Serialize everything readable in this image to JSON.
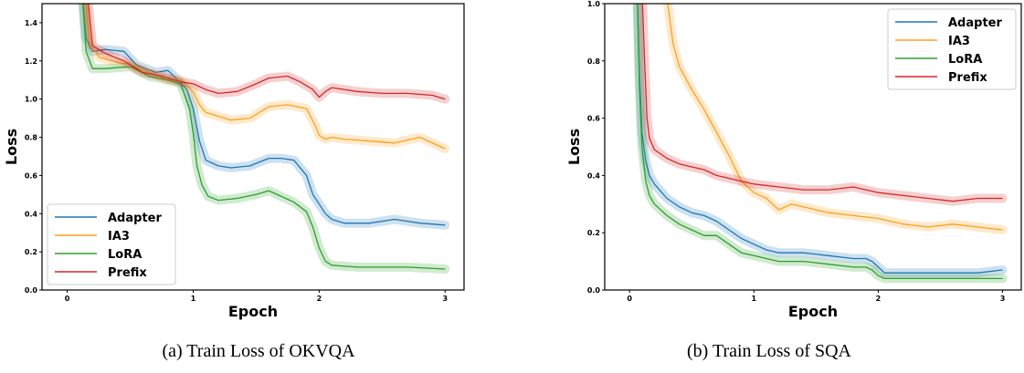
{
  "chart_data": [
    {
      "type": "line",
      "caption": "(a) Train Loss of OKVQA",
      "xlabel": "Epoch",
      "ylabel": "Loss",
      "xlim": [
        -0.2,
        3.15
      ],
      "ylim": [
        0.0,
        1.5
      ],
      "xticks": [
        0,
        1,
        2,
        3
      ],
      "yticks": [
        0.0,
        0.2,
        0.4,
        0.6,
        0.8,
        1.0,
        1.2,
        1.4
      ],
      "ytick_labels": [
        "0.0",
        "0.2",
        "0.4",
        "0.6",
        "0.8",
        "1.0",
        "1.2",
        "1.4"
      ],
      "legend_position": "lower-left",
      "series": [
        {
          "name": "Adapter",
          "color": "#1f77b4",
          "x": [
            0.12,
            0.15,
            0.2,
            0.3,
            0.45,
            0.55,
            0.7,
            0.8,
            0.88,
            0.95,
            1.0,
            1.05,
            1.1,
            1.2,
            1.3,
            1.45,
            1.6,
            1.7,
            1.8,
            1.9,
            1.95,
            2.0,
            2.05,
            2.1,
            2.2,
            2.4,
            2.6,
            2.8,
            3.0
          ],
          "y": [
            1.55,
            1.32,
            1.25,
            1.26,
            1.25,
            1.18,
            1.14,
            1.15,
            1.1,
            1.05,
            0.95,
            0.78,
            0.68,
            0.65,
            0.64,
            0.65,
            0.69,
            0.69,
            0.68,
            0.6,
            0.5,
            0.45,
            0.4,
            0.37,
            0.35,
            0.35,
            0.37,
            0.35,
            0.34
          ]
        },
        {
          "name": "IA3",
          "color": "#ff9f1c",
          "x": [
            0.14,
            0.18,
            0.25,
            0.35,
            0.5,
            0.65,
            0.8,
            0.9,
            1.0,
            1.05,
            1.1,
            1.2,
            1.3,
            1.45,
            1.6,
            1.75,
            1.9,
            1.97,
            2.0,
            2.05,
            2.1,
            2.2,
            2.4,
            2.6,
            2.8,
            3.0
          ],
          "y": [
            1.55,
            1.3,
            1.22,
            1.2,
            1.18,
            1.14,
            1.1,
            1.1,
            1.04,
            0.97,
            0.93,
            0.91,
            0.89,
            0.9,
            0.96,
            0.97,
            0.95,
            0.86,
            0.81,
            0.79,
            0.8,
            0.79,
            0.78,
            0.77,
            0.8,
            0.74
          ]
        },
        {
          "name": "LoRA",
          "color": "#2ca02c",
          "x": [
            0.12,
            0.15,
            0.2,
            0.3,
            0.5,
            0.65,
            0.8,
            0.9,
            0.97,
            1.0,
            1.03,
            1.07,
            1.12,
            1.2,
            1.35,
            1.5,
            1.6,
            1.7,
            1.8,
            1.9,
            1.95,
            2.0,
            2.05,
            2.1,
            2.3,
            2.5,
            2.7,
            3.0
          ],
          "y": [
            1.55,
            1.25,
            1.16,
            1.16,
            1.17,
            1.12,
            1.1,
            1.08,
            0.95,
            0.82,
            0.65,
            0.55,
            0.49,
            0.47,
            0.48,
            0.5,
            0.52,
            0.49,
            0.46,
            0.41,
            0.33,
            0.22,
            0.15,
            0.13,
            0.12,
            0.12,
            0.12,
            0.11
          ]
        },
        {
          "name": "Prefix",
          "color": "#d62728",
          "x": [
            0.16,
            0.2,
            0.3,
            0.45,
            0.6,
            0.75,
            0.9,
            1.0,
            1.1,
            1.2,
            1.35,
            1.5,
            1.6,
            1.75,
            1.85,
            1.95,
            2.0,
            2.05,
            2.1,
            2.3,
            2.5,
            2.7,
            2.9,
            3.0
          ],
          "y": [
            1.55,
            1.28,
            1.24,
            1.2,
            1.14,
            1.12,
            1.09,
            1.08,
            1.05,
            1.03,
            1.04,
            1.08,
            1.11,
            1.12,
            1.09,
            1.05,
            1.01,
            1.04,
            1.06,
            1.04,
            1.03,
            1.03,
            1.02,
            1.0
          ]
        }
      ]
    },
    {
      "type": "line",
      "caption": "(b) Train Loss of SQA",
      "xlabel": "Epoch",
      "ylabel": "Loss",
      "xlim": [
        -0.2,
        3.15
      ],
      "ylim": [
        0.0,
        1.0
      ],
      "xticks": [
        0,
        1,
        2,
        3
      ],
      "yticks": [
        0.0,
        0.2,
        0.4,
        0.6,
        0.8,
        1.0
      ],
      "ytick_labels": [
        "0.0",
        "0.2",
        "0.4",
        "0.6",
        "0.8",
        "1.0"
      ],
      "legend_position": "top-right",
      "series": [
        {
          "name": "Adapter",
          "color": "#1f77b4",
          "x": [
            0.06,
            0.08,
            0.1,
            0.13,
            0.16,
            0.2,
            0.3,
            0.4,
            0.5,
            0.6,
            0.7,
            0.8,
            0.9,
            1.0,
            1.1,
            1.2,
            1.4,
            1.6,
            1.8,
            1.9,
            1.95,
            2.0,
            2.05,
            2.1,
            2.2,
            2.4,
            2.6,
            2.8,
            3.0
          ],
          "y": [
            1.05,
            0.75,
            0.55,
            0.45,
            0.4,
            0.37,
            0.32,
            0.29,
            0.27,
            0.26,
            0.24,
            0.21,
            0.18,
            0.16,
            0.14,
            0.13,
            0.13,
            0.12,
            0.11,
            0.11,
            0.1,
            0.08,
            0.06,
            0.06,
            0.06,
            0.06,
            0.06,
            0.06,
            0.07
          ]
        },
        {
          "name": "IA3",
          "color": "#ff9f1c",
          "x": [
            0.3,
            0.35,
            0.4,
            0.5,
            0.6,
            0.7,
            0.8,
            0.9,
            1.0,
            1.1,
            1.2,
            1.3,
            1.4,
            1.6,
            1.8,
            2.0,
            2.2,
            2.4,
            2.6,
            2.8,
            3.0
          ],
          "y": [
            1.02,
            0.86,
            0.78,
            0.7,
            0.63,
            0.55,
            0.47,
            0.38,
            0.34,
            0.32,
            0.28,
            0.3,
            0.29,
            0.27,
            0.26,
            0.25,
            0.23,
            0.22,
            0.23,
            0.22,
            0.21
          ]
        },
        {
          "name": "LoRA",
          "color": "#2ca02c",
          "x": [
            0.06,
            0.08,
            0.1,
            0.13,
            0.16,
            0.2,
            0.3,
            0.4,
            0.5,
            0.6,
            0.7,
            0.8,
            0.9,
            1.0,
            1.1,
            1.2,
            1.4,
            1.6,
            1.8,
            1.9,
            1.95,
            2.0,
            2.05,
            2.1,
            2.3,
            2.5,
            2.7,
            3.0
          ],
          "y": [
            1.05,
            0.7,
            0.5,
            0.38,
            0.33,
            0.3,
            0.26,
            0.23,
            0.21,
            0.19,
            0.19,
            0.16,
            0.13,
            0.12,
            0.11,
            0.1,
            0.1,
            0.09,
            0.08,
            0.08,
            0.07,
            0.05,
            0.04,
            0.04,
            0.04,
            0.04,
            0.04,
            0.04
          ]
        },
        {
          "name": "Prefix",
          "color": "#d62728",
          "x": [
            0.1,
            0.12,
            0.14,
            0.16,
            0.2,
            0.3,
            0.4,
            0.5,
            0.6,
            0.7,
            0.8,
            0.9,
            1.0,
            1.2,
            1.4,
            1.6,
            1.8,
            2.0,
            2.2,
            2.4,
            2.6,
            2.8,
            3.0
          ],
          "y": [
            1.05,
            0.8,
            0.6,
            0.53,
            0.49,
            0.46,
            0.44,
            0.43,
            0.42,
            0.4,
            0.39,
            0.38,
            0.37,
            0.36,
            0.35,
            0.35,
            0.36,
            0.34,
            0.33,
            0.32,
            0.31,
            0.32,
            0.32
          ]
        }
      ]
    }
  ]
}
